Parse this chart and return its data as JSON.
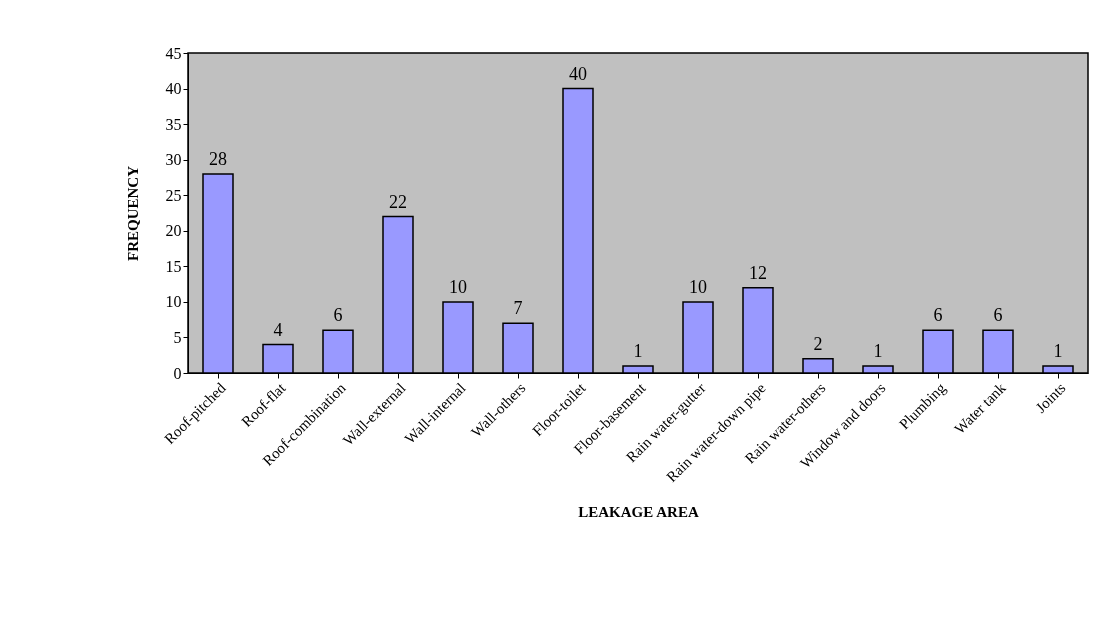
{
  "chart_data": {
    "type": "bar",
    "xlabel": "LEAKAGE AREA",
    "ylabel": "FREQUENCY",
    "categories": [
      "Roof-pitched",
      "Roof-flat",
      "Roof-combination",
      "Wall-external",
      "Wall-internal",
      "Wall-others",
      "Floor-toilet",
      "Floor-basement",
      "Rain water-gutter",
      "Rain water-down pipe",
      "Rain water-others",
      "Window and doors",
      "Plumbing",
      "Water tank",
      "Joints"
    ],
    "values": [
      28,
      4,
      6,
      22,
      10,
      7,
      40,
      1,
      10,
      12,
      2,
      1,
      6,
      6,
      1
    ],
    "color": "#9999ff",
    "ylim": [
      0,
      45
    ],
    "yticks": [
      0,
      5,
      10,
      15,
      20,
      25,
      30,
      35,
      40,
      45
    ],
    "grid": false,
    "data_labels": true
  }
}
